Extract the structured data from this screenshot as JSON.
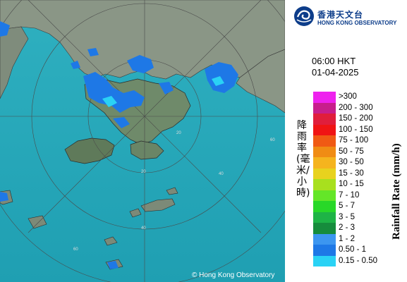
{
  "header": {
    "logo_cn": "香港天文台",
    "logo_en": "HONG KONG OBSERVATORY",
    "logo_icon": "hko-logo-icon"
  },
  "timestamp": {
    "time": "06:00 HKT",
    "date": "01-04-2025"
  },
  "legend": {
    "title_cn": "降雨率(毫米/小時)",
    "title_en": "Rainfall Rate (mm/h)",
    "items": [
      {
        "label": ">300",
        "color": "#ee22ee"
      },
      {
        "label": "200 - 300",
        "color": "#c81e8c"
      },
      {
        "label": "150 - 200",
        "color": "#e01e3c"
      },
      {
        "label": "100 - 150",
        "color": "#f01414"
      },
      {
        "label": "75 - 100",
        "color": "#f05a14"
      },
      {
        "label": "50 - 75",
        "color": "#f08c14"
      },
      {
        "label": "30 - 50",
        "color": "#f5b41e"
      },
      {
        "label": "15 - 30",
        "color": "#e8d21e"
      },
      {
        "label": "10 - 15",
        "color": "#a8e01e"
      },
      {
        "label": "7 - 10",
        "color": "#64e628"
      },
      {
        "label": "5 - 7",
        "color": "#28d828"
      },
      {
        "label": "3 - 5",
        "color": "#1eb446"
      },
      {
        "label": "2 - 3",
        "color": "#168c3c"
      },
      {
        "label": "1 - 2",
        "color": "#3c96f0"
      },
      {
        "label": "0.50 - 1",
        "color": "#1e78e6"
      },
      {
        "label": "0.15 - 0.50",
        "color": "#2ad2f5"
      }
    ]
  },
  "map": {
    "copyright": "© Hong Kong Observatory",
    "range_labels": [
      "60",
      "40",
      "20",
      "60",
      "40",
      "20"
    ],
    "sea_color": "#28a8b8",
    "land_color": "#7a8a78"
  }
}
